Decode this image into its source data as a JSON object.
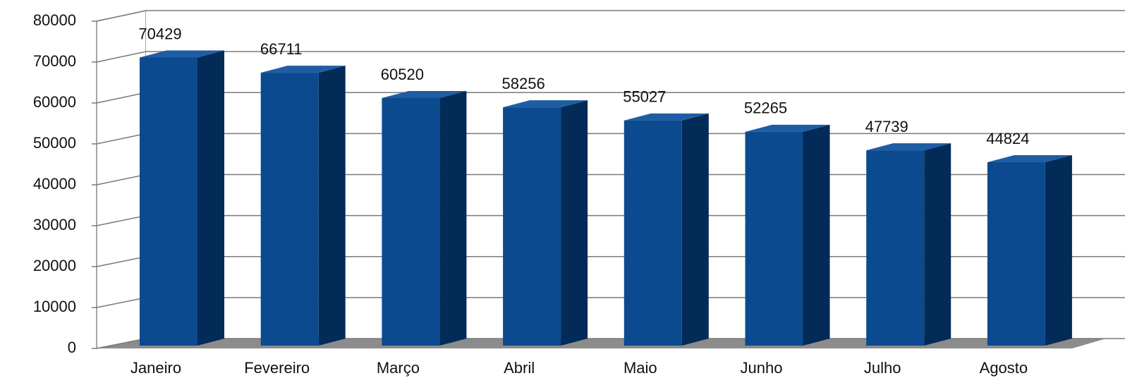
{
  "chart_data": {
    "type": "bar3d",
    "categories": [
      "Janeiro",
      "Fevereiro",
      "Março",
      "Abril",
      "Maio",
      "Junho",
      "Julho",
      "Agosto"
    ],
    "values": [
      70429,
      66711,
      60520,
      58256,
      55027,
      52265,
      47739,
      44824
    ],
    "color": "#0b4a8f",
    "ylim": [
      0,
      80000
    ],
    "yticks": [
      0,
      10000,
      20000,
      30000,
      40000,
      50000,
      60000,
      70000,
      80000
    ],
    "grid": true
  }
}
